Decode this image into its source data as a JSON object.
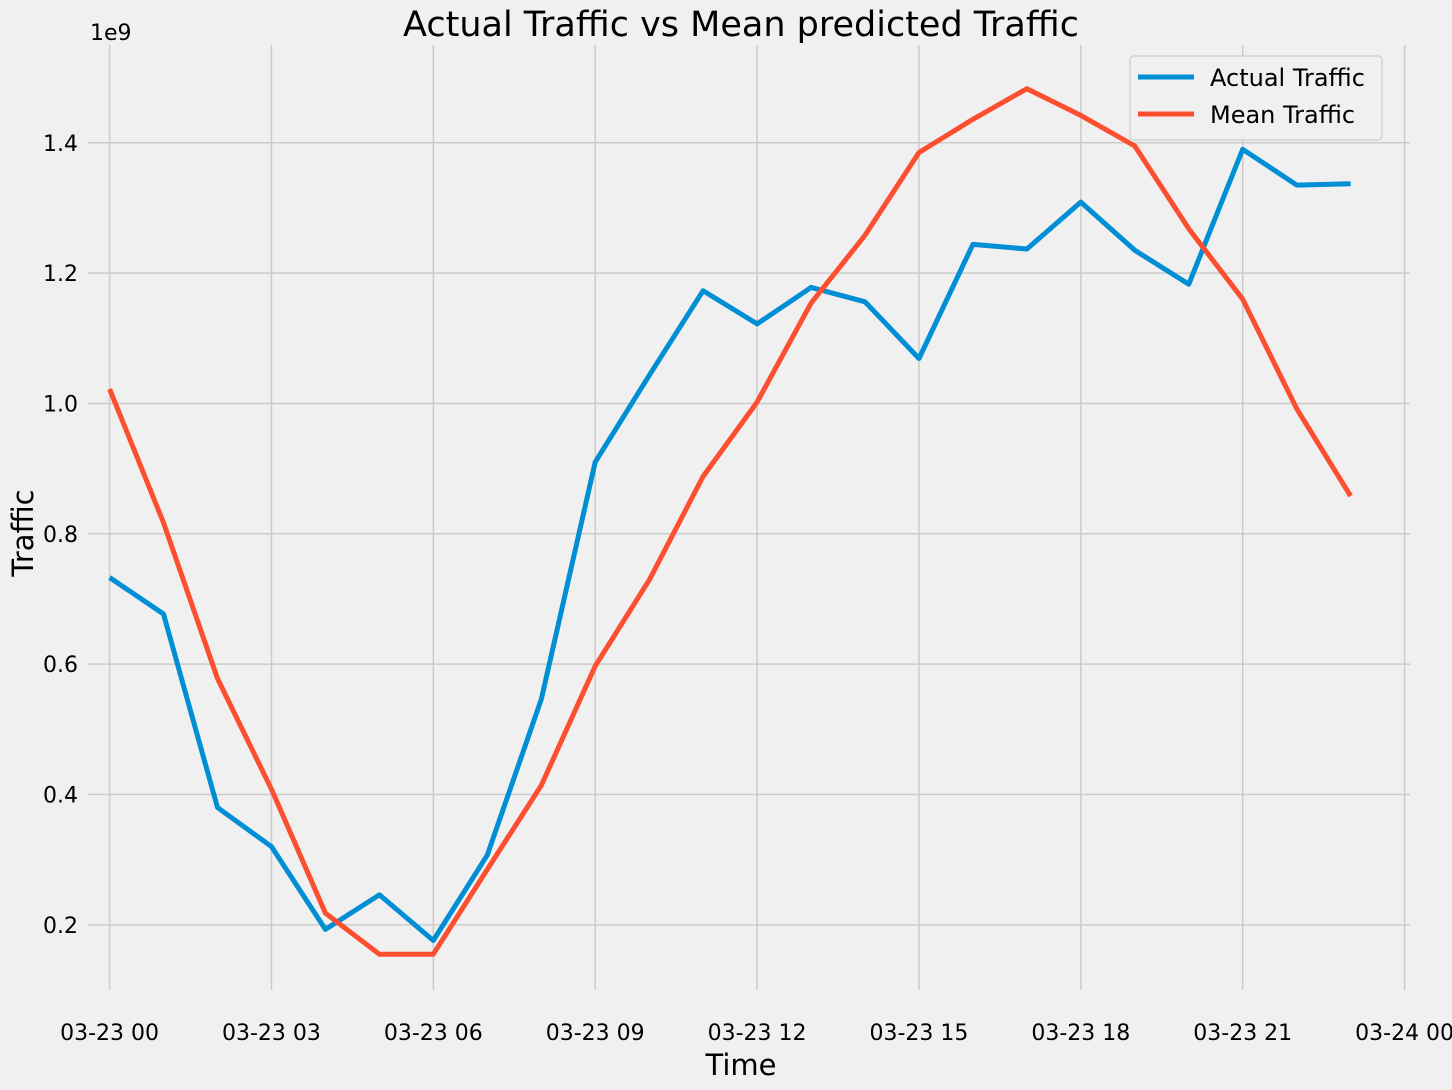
{
  "chart_data": {
    "type": "line",
    "title": "Actual Traffic vs Mean predicted Traffic",
    "xlabel": "Time",
    "ylabel": "Traffic",
    "y_offset_label": "1e9",
    "x": [
      "03-23 00",
      "03-23 01",
      "03-23 02",
      "03-23 03",
      "03-23 04",
      "03-23 05",
      "03-23 06",
      "03-23 07",
      "03-23 08",
      "03-23 09",
      "03-23 10",
      "03-23 11",
      "03-23 12",
      "03-23 13",
      "03-23 14",
      "03-23 15",
      "03-23 16",
      "03-23 17",
      "03-23 18",
      "03-23 19",
      "03-23 20",
      "03-23 21",
      "03-23 22",
      "03-23 23"
    ],
    "x_hours": [
      0,
      1,
      2,
      3,
      4,
      5,
      6,
      7,
      8,
      9,
      10,
      11,
      12,
      13,
      14,
      15,
      16,
      17,
      18,
      19,
      20,
      21,
      22,
      23
    ],
    "xlim": [
      -0.4,
      24.1
    ],
    "ylim": [
      0.1,
      1.55
    ],
    "x_ticks": [
      0,
      3,
      6,
      9,
      12,
      15,
      18,
      21,
      24
    ],
    "x_tick_labels": [
      "03-23 00",
      "03-23 03",
      "03-23 06",
      "03-23 09",
      "03-23 12",
      "03-23 15",
      "03-23 18",
      "03-23 21",
      "03-24 00"
    ],
    "y_ticks": [
      0.2,
      0.4,
      0.6,
      0.8,
      1.0,
      1.2,
      1.4
    ],
    "y_tick_labels": [
      "0.2",
      "0.4",
      "0.6",
      "0.8",
      "1.0",
      "1.2",
      "1.4"
    ],
    "grid": true,
    "legend_position": "top-right",
    "series": [
      {
        "name": "Actual Traffic",
        "color": "#008fd5",
        "values": [
          0.733,
          0.677,
          0.38,
          0.32,
          0.193,
          0.246,
          0.176,
          0.307,
          0.546,
          0.91,
          1.043,
          1.173,
          1.122,
          1.178,
          1.156,
          1.069,
          1.244,
          1.237,
          1.309,
          1.235,
          1.183,
          1.39,
          1.335,
          1.337
        ]
      },
      {
        "name": "Mean Traffic",
        "color": "#fc4f30",
        "values": [
          1.022,
          0.817,
          0.578,
          0.408,
          0.218,
          0.155,
          0.155,
          0.285,
          0.414,
          0.597,
          0.729,
          0.888,
          1.002,
          1.154,
          1.258,
          1.385,
          1.436,
          1.483,
          1.442,
          1.395,
          1.268,
          1.16,
          0.992,
          0.858
        ]
      }
    ]
  }
}
